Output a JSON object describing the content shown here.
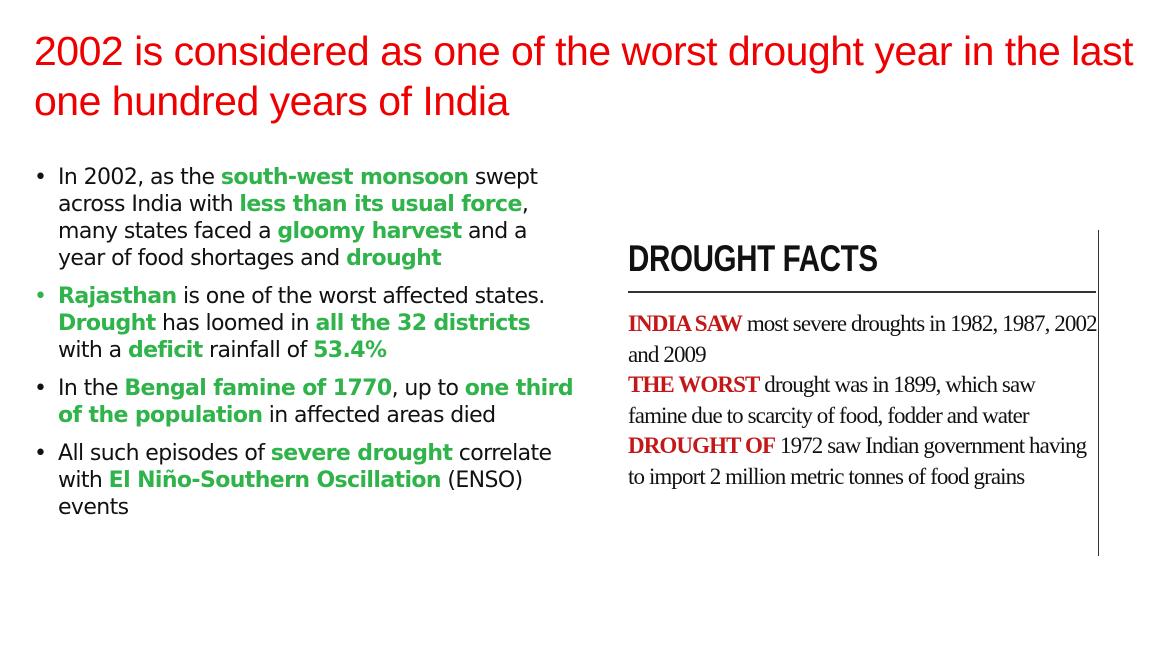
{
  "title": "2002 is considered as one of the worst drought year in the last one hundred years of India",
  "bullets": [
    {
      "parts": [
        {
          "text": "In 2002, as the ",
          "hl": false
        },
        {
          "text": "south-west monsoon",
          "hl": true
        },
        {
          "text": " swept across India with ",
          "hl": false
        },
        {
          "text": "less than its usual force",
          "hl": true
        },
        {
          "text": ", many states faced a ",
          "hl": false
        },
        {
          "text": "gloomy harvest",
          "hl": true
        },
        {
          "text": " and a year of food shortages and ",
          "hl": false
        },
        {
          "text": "drought",
          "hl": true
        }
      ]
    },
    {
      "parts": [
        {
          "text": "Rajasthan",
          "hl": true
        },
        {
          "text": " is one of the worst affected states. ",
          "hl": false
        },
        {
          "text": "Drought",
          "hl": true
        },
        {
          "text": " has loomed in ",
          "hl": false
        },
        {
          "text": "all the 32 districts",
          "hl": true
        },
        {
          "text": " with a ",
          "hl": false
        },
        {
          "text": "deficit",
          "hl": true
        },
        {
          "text": " rainfall of ",
          "hl": false
        },
        {
          "text": "53.4%",
          "hl": true
        }
      ]
    },
    {
      "parts": [
        {
          "text": "In the ",
          "hl": false
        },
        {
          "text": "Bengal famine of 1770",
          "hl": true
        },
        {
          "text": ", up to ",
          "hl": false
        },
        {
          "text": "one third of the population",
          "hl": true
        },
        {
          "text": " in affected areas died",
          "hl": false
        }
      ]
    },
    {
      "parts": [
        {
          "text": "All such episodes of ",
          "hl": false
        },
        {
          "text": "severe drought",
          "hl": true
        },
        {
          "text": " correlate with ",
          "hl": false
        },
        {
          "text": "El Niño-Southern Oscillation",
          "hl": true
        },
        {
          "text": " (ENSO) events",
          "hl": false
        }
      ]
    }
  ],
  "facts": {
    "heading": "DROUGHT FACTS",
    "items": [
      {
        "label": "INDIA SAW",
        "text": " most severe droughts in 1982, 1987, 2002 and 2009"
      },
      {
        "label": "THE WORST",
        "text": " drought was in 1899, which saw famine due to scarcity of food, fodder and water"
      },
      {
        "label": "DROUGHT OF",
        "text": " 1972 saw Indian government having to import 2 million metric tonnes of food grains"
      }
    ]
  },
  "colors": {
    "title": "#ee0000",
    "highlight": "#2fb34a",
    "fact_label": "#c41717"
  }
}
